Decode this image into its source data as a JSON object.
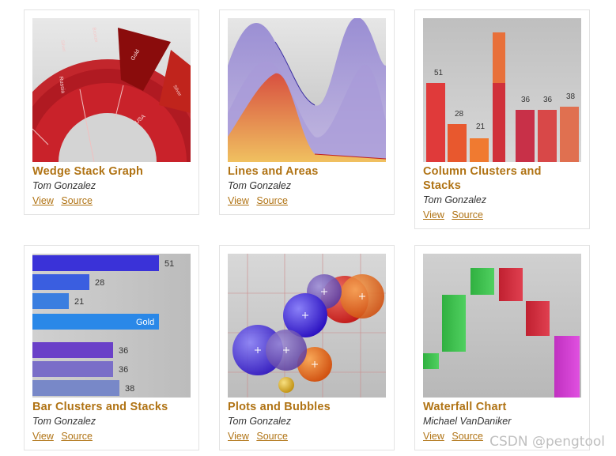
{
  "gallery": {
    "items": [
      {
        "title": "Wedge Stack Graph",
        "author": "Tom Gonzalez",
        "view": "View",
        "source": "Source"
      },
      {
        "title": "Lines and Areas",
        "author": "Tom Gonzalez",
        "view": "View",
        "source": "Source"
      },
      {
        "title": "Column Clusters and Stacks",
        "author": "Tom Gonzalez",
        "view": "View",
        "source": "Source"
      },
      {
        "title": "Bar Clusters and Stacks",
        "author": "Tom Gonzalez",
        "view": "View",
        "source": "Source"
      },
      {
        "title": "Plots and Bubbles",
        "author": "Tom Gonzalez",
        "view": "View",
        "source": "Source"
      },
      {
        "title": "Waterfall Chart",
        "author": "Michael VanDaniker",
        "view": "View",
        "source": "Source"
      }
    ]
  },
  "thumbs": {
    "wedge": {
      "labels": [
        "Silver",
        "Bronze",
        "Russia",
        "Gold",
        "Silver",
        "USA"
      ]
    },
    "columns": {
      "labels": [
        "51",
        "28",
        "21",
        "36",
        "36",
        "38"
      ]
    },
    "bars": {
      "labels": [
        "51",
        "28",
        "21",
        "Gold",
        "36",
        "36",
        "38"
      ]
    }
  },
  "watermark": "CSDN @pengtool",
  "colors": {
    "title": "#b07314",
    "link": "#b07314",
    "author": "#333333"
  }
}
